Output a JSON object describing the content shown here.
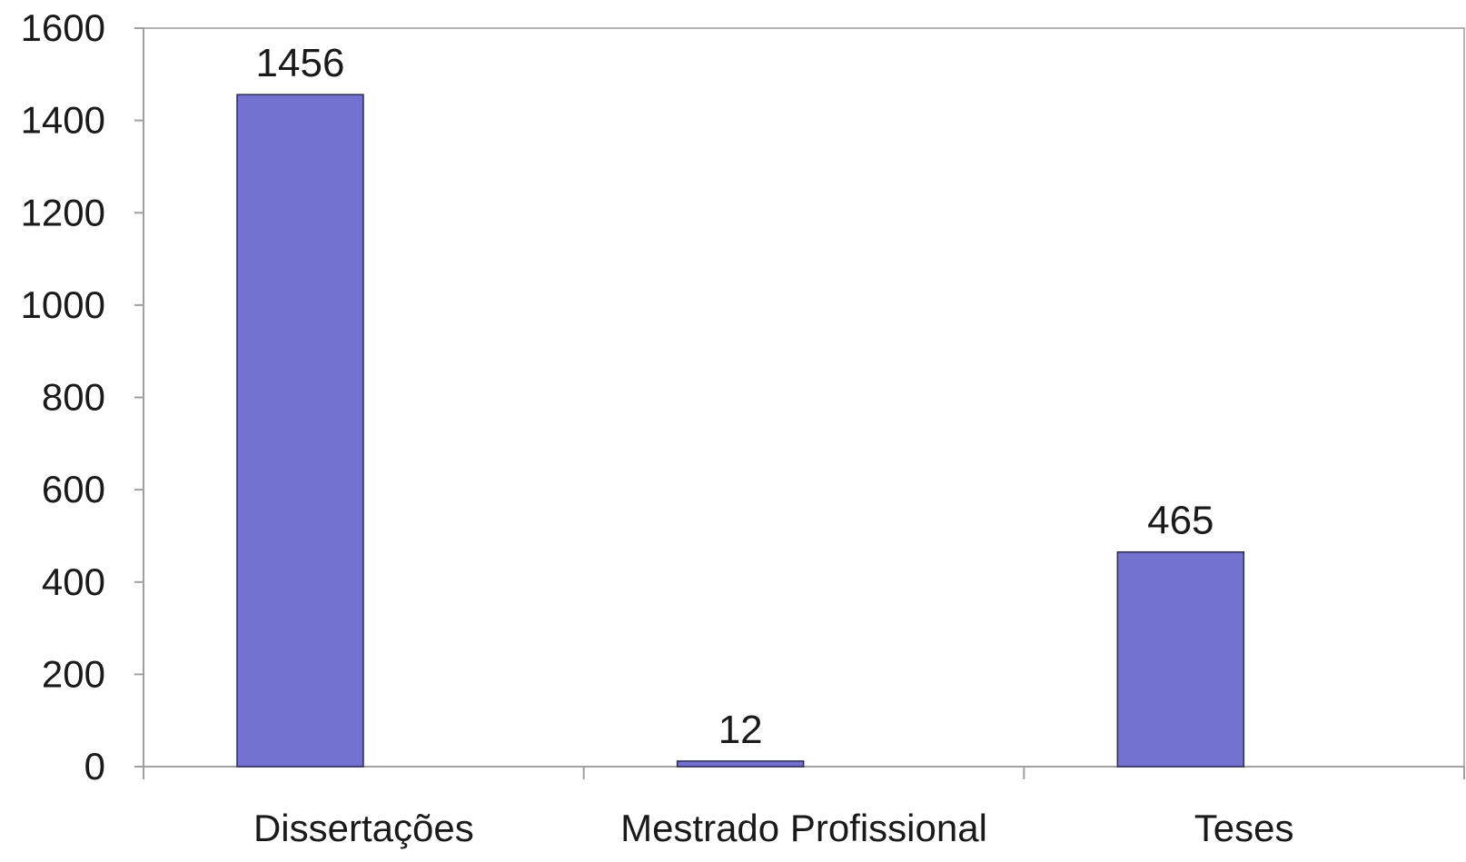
{
  "chart_data": {
    "type": "bar",
    "categories": [
      "Dissertações",
      "Mestrado Profissional",
      "Teses"
    ],
    "values": [
      1456,
      12,
      465
    ],
    "data_labels": [
      "1456",
      "12",
      "465"
    ],
    "y_ticks": [
      "0",
      "200",
      "400",
      "600",
      "800",
      "1000",
      "1200",
      "1400",
      "1600"
    ],
    "ylim": [
      0,
      1600
    ],
    "title": "",
    "xlabel": "",
    "ylabel": "",
    "grid": false,
    "legend": "none",
    "bar_color": "#7472D0",
    "bar_stroke": "#2a2a55",
    "axis_color": "#a0a0a0",
    "frame_color": "#808080"
  }
}
